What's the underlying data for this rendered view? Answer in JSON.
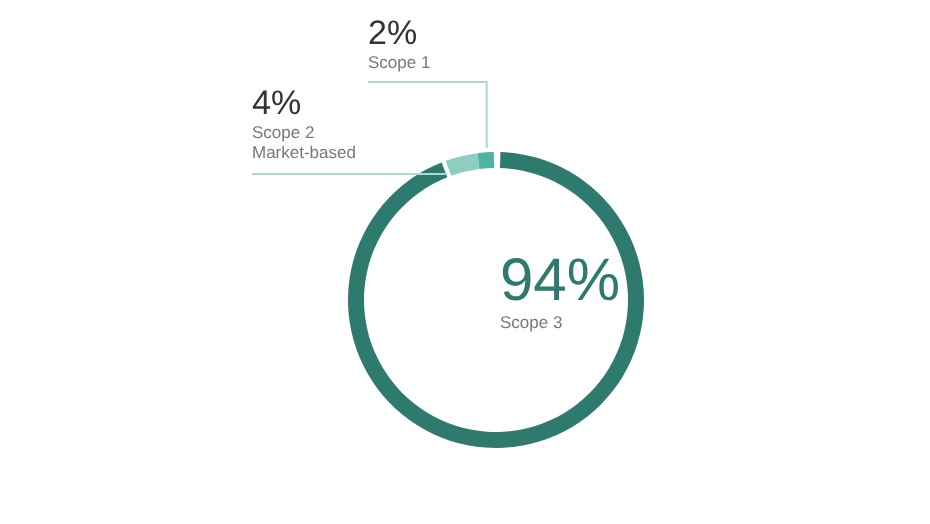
{
  "chart_data": {
    "type": "donut",
    "categories": [
      "Scope 1",
      "Scope 2\nMarket-based",
      "Scope 3"
    ],
    "values": [
      2,
      4,
      94
    ],
    "colors": [
      "#4fb3a3",
      "#8ccfc0",
      "#2f7a6e"
    ],
    "value_labels": [
      "2%",
      "4%",
      "94%"
    ]
  }
}
